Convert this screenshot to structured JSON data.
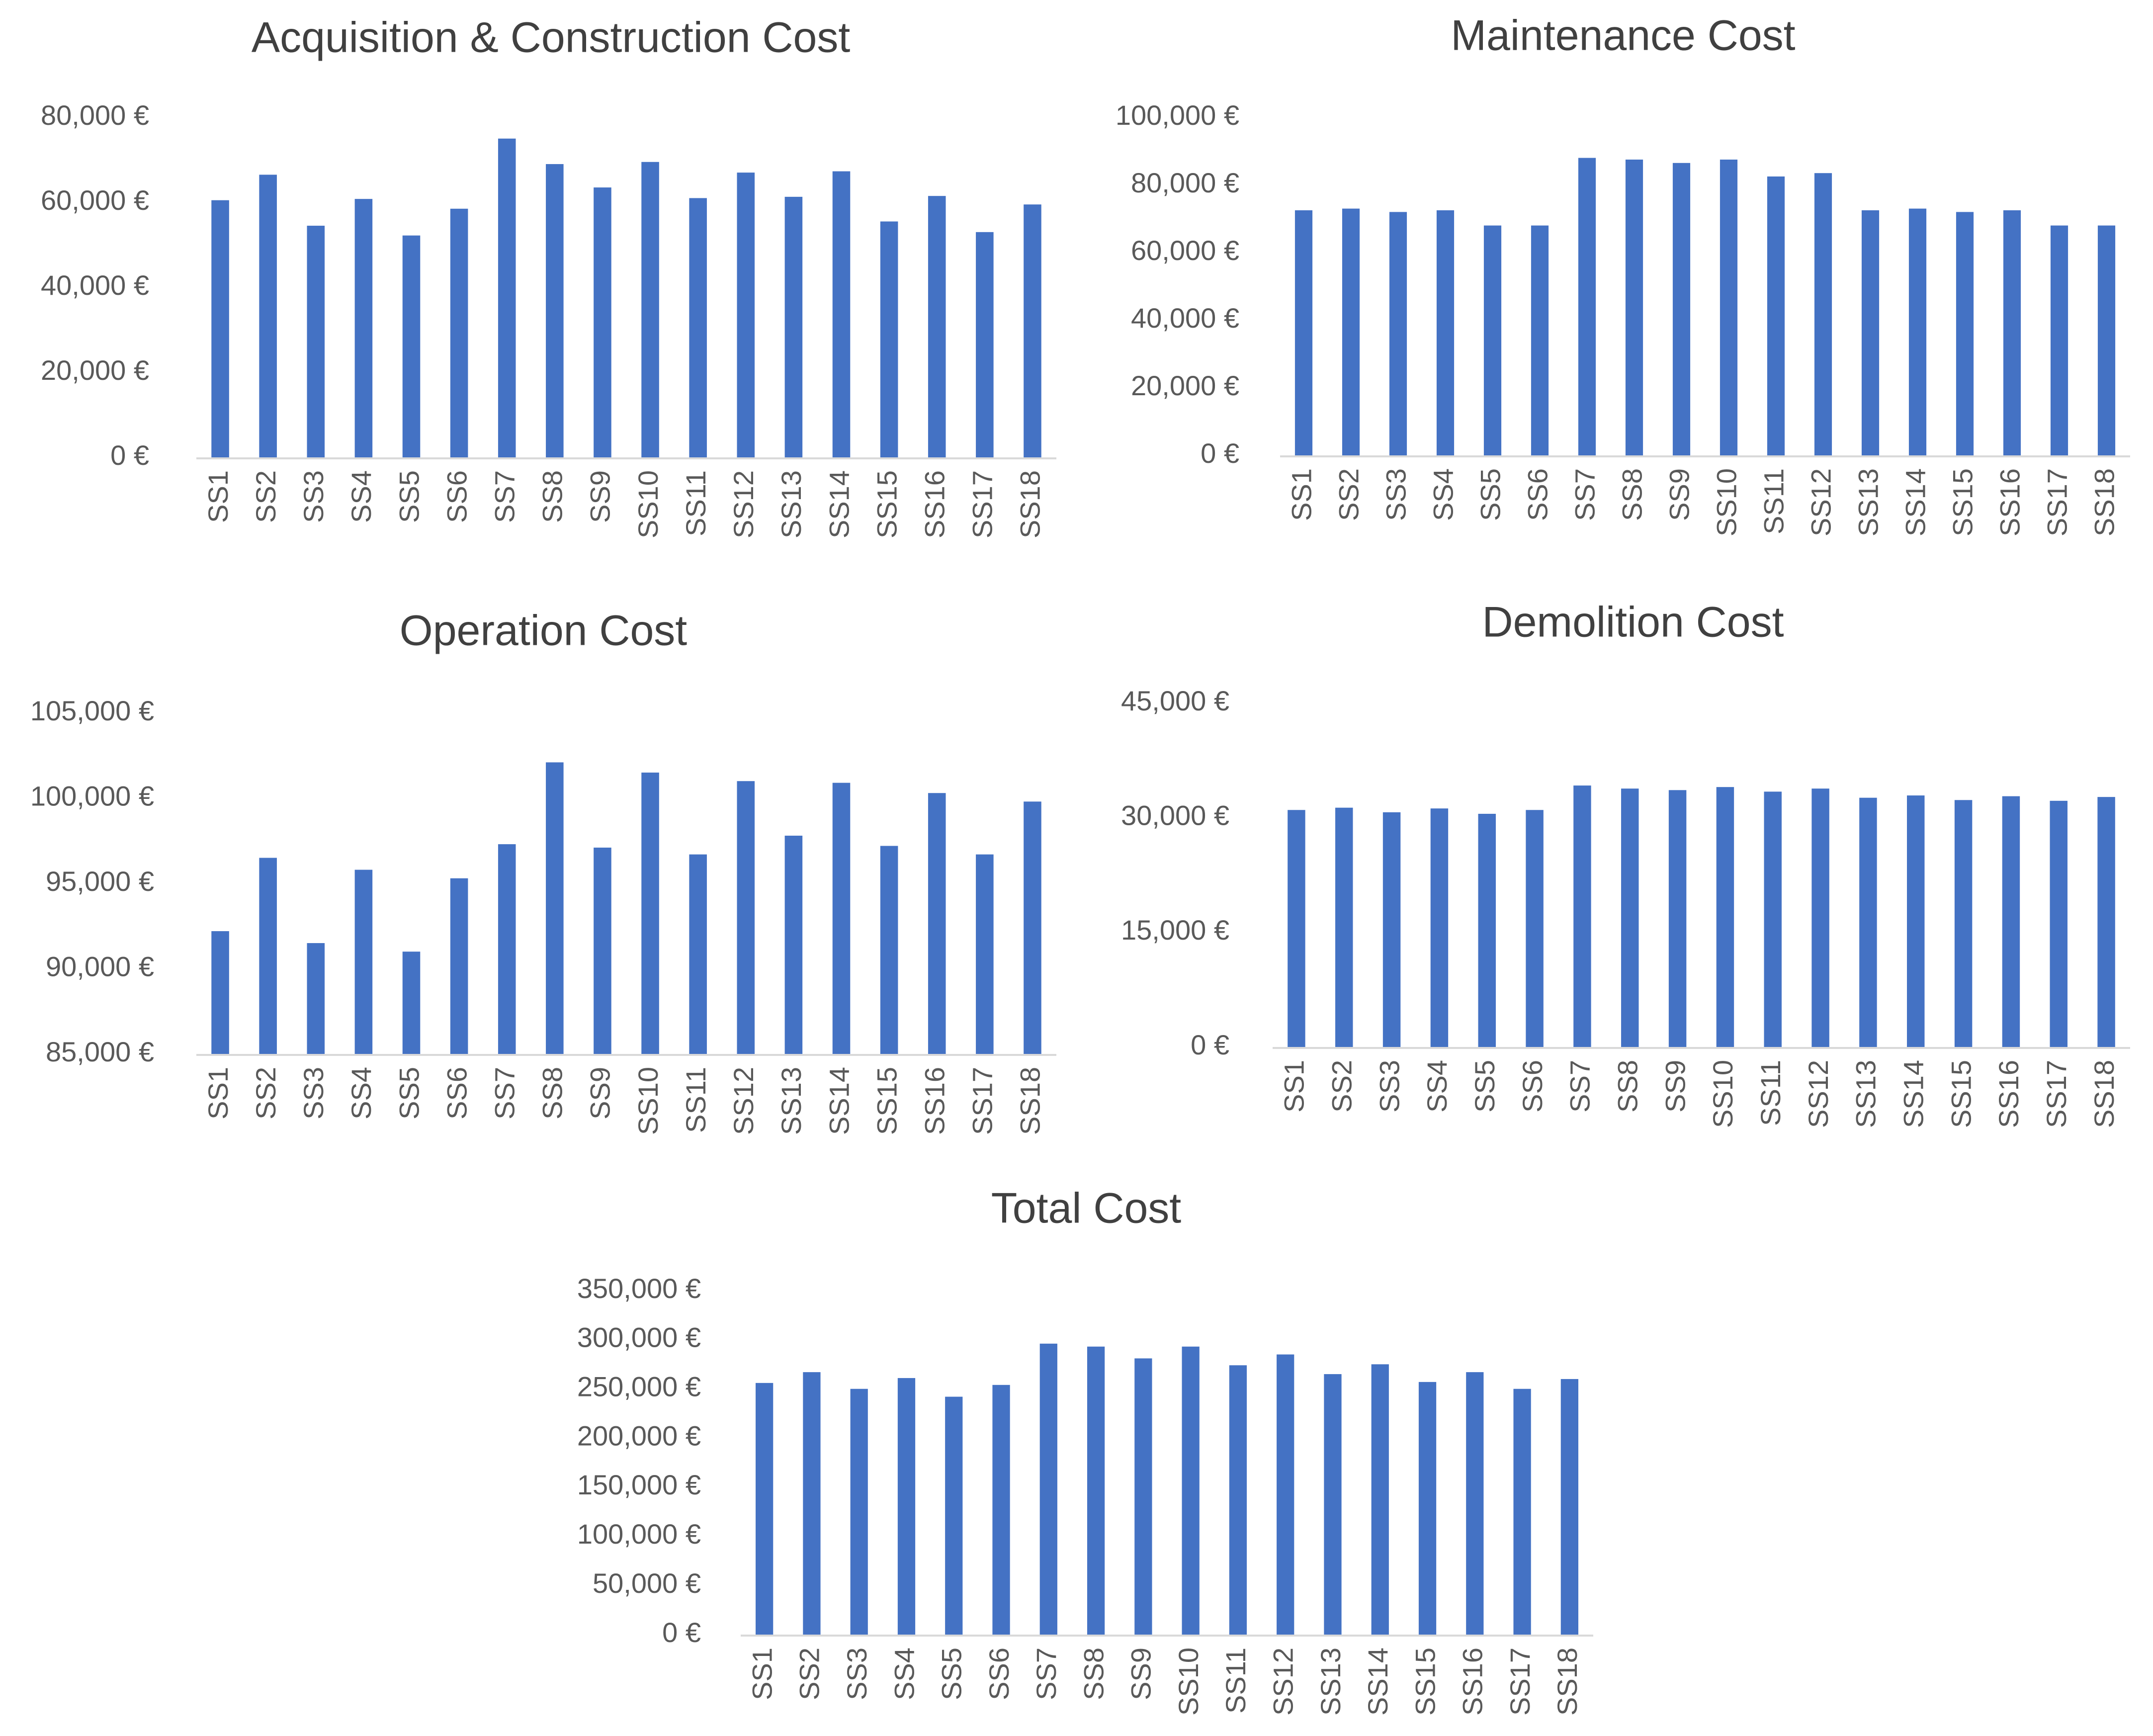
{
  "colors": {
    "bar": "#4472c4",
    "axis": "#d9d9d9",
    "text": "#595959",
    "title": "#404040"
  },
  "chart_data": [
    {
      "id": "acquisition",
      "type": "bar",
      "title": "Acquisition & Construction Cost",
      "categories": [
        "SS1",
        "SS2",
        "SS3",
        "SS4",
        "SS5",
        "SS6",
        "SS7",
        "SS8",
        "SS9",
        "SS10",
        "SS11",
        "SS12",
        "SS13",
        "SS14",
        "SS15",
        "SS16",
        "SS17",
        "SS18"
      ],
      "values": [
        60500,
        66500,
        54500,
        60800,
        52200,
        58500,
        75000,
        69000,
        63500,
        69500,
        61000,
        67000,
        61300,
        67300,
        55500,
        61500,
        53000,
        59500
      ],
      "ylim": [
        0,
        80000
      ],
      "yticks": [
        0,
        20000,
        40000,
        60000,
        80000
      ],
      "ytick_labels": [
        "0 €",
        "20,000 €",
        "40,000 €",
        "60,000 €",
        "80,000 €"
      ],
      "xlabel": "",
      "ylabel": ""
    },
    {
      "id": "maintenance",
      "type": "bar",
      "title": "Maintenance Cost",
      "categories": [
        "SS1",
        "SS2",
        "SS3",
        "SS4",
        "SS5",
        "SS6",
        "SS7",
        "SS8",
        "SS9",
        "SS10",
        "SS11",
        "SS12",
        "SS13",
        "SS14",
        "SS15",
        "SS16",
        "SS17",
        "SS18"
      ],
      "values": [
        72500,
        73000,
        72000,
        72500,
        68000,
        68000,
        88000,
        87500,
        86500,
        87500,
        82500,
        83500,
        72500,
        73000,
        72000,
        72500,
        68000,
        68000
      ],
      "ylim": [
        0,
        100000
      ],
      "yticks": [
        0,
        20000,
        40000,
        60000,
        80000,
        100000
      ],
      "ytick_labels": [
        "0 €",
        "20,000 €",
        "40,000 €",
        "60,000 €",
        "80,000 €",
        "100,000 €"
      ],
      "xlabel": "",
      "ylabel": ""
    },
    {
      "id": "operation",
      "type": "bar",
      "title": "Operation Cost",
      "categories": [
        "SS1",
        "SS2",
        "SS3",
        "SS4",
        "SS5",
        "SS6",
        "SS7",
        "SS8",
        "SS9",
        "SS10",
        "SS11",
        "SS12",
        "SS13",
        "SS14",
        "SS15",
        "SS16",
        "SS17",
        "SS18"
      ],
      "values": [
        92200,
        96500,
        91500,
        95800,
        91000,
        95300,
        97300,
        102100,
        97100,
        101500,
        96700,
        101000,
        97800,
        100900,
        97200,
        100300,
        96700,
        99800
      ],
      "ylim": [
        85000,
        105000
      ],
      "yticks": [
        85000,
        90000,
        95000,
        100000,
        105000
      ],
      "ytick_labels": [
        "85,000 €",
        "90,000 €",
        "95,000 €",
        "100,000 €",
        "105,000 €"
      ],
      "xlabel": "",
      "ylabel": ""
    },
    {
      "id": "demolition",
      "type": "bar",
      "title": "Demolition Cost",
      "categories": [
        "SS1",
        "SS2",
        "SS3",
        "SS4",
        "SS5",
        "SS6",
        "SS7",
        "SS8",
        "SS9",
        "SS10",
        "SS11",
        "SS12",
        "SS13",
        "SS14",
        "SS15",
        "SS16",
        "SS17",
        "SS18"
      ],
      "values": [
        31000,
        31300,
        30700,
        31200,
        30500,
        31000,
        34200,
        33800,
        33600,
        34000,
        33400,
        33800,
        32600,
        32900,
        32300,
        32800,
        32200,
        32700
      ],
      "ylim": [
        0,
        45000
      ],
      "yticks": [
        0,
        15000,
        30000,
        45000
      ],
      "ytick_labels": [
        "0 €",
        "15,000 €",
        "30,000 €",
        "45,000 €"
      ],
      "xlabel": "",
      "ylabel": ""
    },
    {
      "id": "total",
      "type": "bar",
      "title": "Total Cost",
      "categories": [
        "SS1",
        "SS2",
        "SS3",
        "SS4",
        "SS5",
        "SS6",
        "SS7",
        "SS8",
        "SS9",
        "SS10",
        "SS11",
        "SS12",
        "SS13",
        "SS14",
        "SS15",
        "SS16",
        "SS17",
        "SS18"
      ],
      "values": [
        256000,
        267000,
        250000,
        261000,
        242000,
        254000,
        296000,
        293000,
        281000,
        293000,
        274000,
        285000,
        265000,
        275000,
        257000,
        267000,
        250000,
        260000
      ],
      "ylim": [
        0,
        350000
      ],
      "yticks": [
        0,
        50000,
        100000,
        150000,
        200000,
        250000,
        300000,
        350000
      ],
      "ytick_labels": [
        "0 €",
        "50,000 €",
        "100,000 €",
        "150,000 €",
        "200,000 €",
        "250,000 €",
        "300,000 €",
        "350,000 €"
      ],
      "xlabel": "",
      "ylabel": ""
    }
  ]
}
